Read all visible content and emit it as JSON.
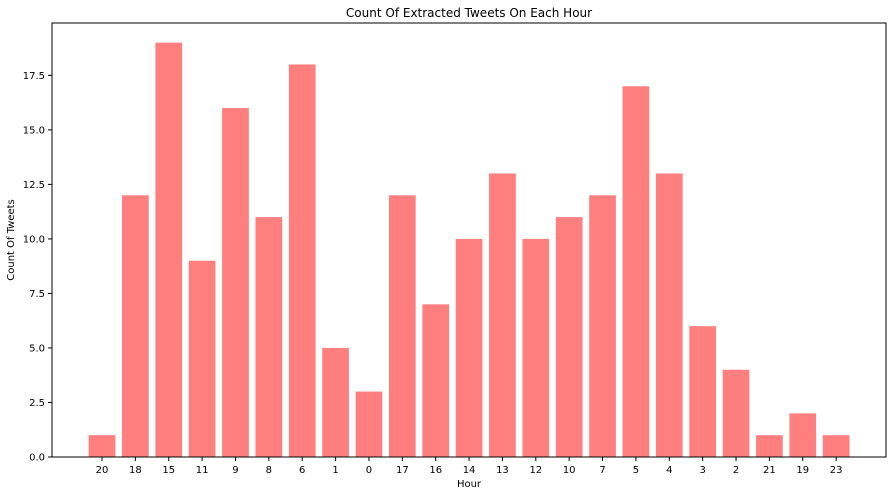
{
  "chart_data": {
    "type": "bar",
    "title": "Count Of Extracted Tweets On Each Hour",
    "xlabel": "Hour",
    "ylabel": "Count Of Tweets",
    "categories": [
      "20",
      "18",
      "15",
      "11",
      "9",
      "8",
      "6",
      "1",
      "0",
      "17",
      "16",
      "14",
      "13",
      "12",
      "10",
      "7",
      "5",
      "4",
      "3",
      "2",
      "21",
      "19",
      "23"
    ],
    "values": [
      1,
      12,
      19,
      9,
      16,
      11,
      18,
      5,
      3,
      12,
      7,
      10,
      13,
      10,
      11,
      12,
      17,
      13,
      6,
      4,
      1,
      2,
      1
    ],
    "ylim": [
      0,
      19.9
    ],
    "yticks": [
      "0.0",
      "2.5",
      "5.0",
      "7.5",
      "10.0",
      "12.5",
      "15.0",
      "17.5"
    ],
    "grid": false,
    "bar_color": "#ff7f7f"
  }
}
